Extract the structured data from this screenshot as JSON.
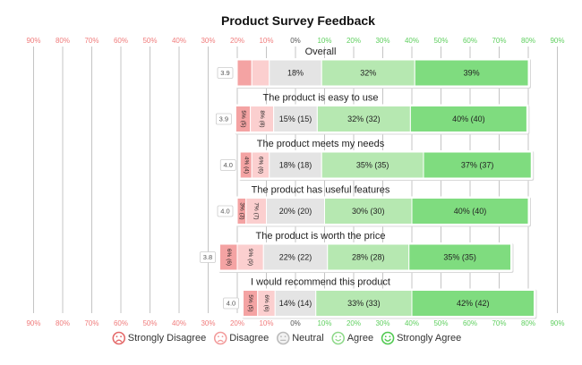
{
  "chart_data": {
    "type": "bar",
    "subtype": "diverging-stacked-horizontal",
    "title": "Product Survey Feedback",
    "axis": {
      "min": -100,
      "max": 100,
      "neutral_centered": true,
      "negative_ticks": [
        "90%",
        "80%",
        "70%",
        "60%",
        "50%",
        "40%",
        "30%",
        "20%",
        "10%"
      ],
      "zero_tick": "0%",
      "positive_ticks": [
        "10%",
        "20%",
        "30%",
        "40%",
        "50%",
        "60%",
        "70%",
        "80%",
        "90%"
      ],
      "negative_color": "#f07c7c",
      "zero_color": "#555555",
      "positive_color": "#5fcf5f"
    },
    "legend_position": "bottom",
    "series": [
      {
        "name": "Strongly Disagree",
        "color": "#f4a3a3",
        "icon": "very-sad-face-icon"
      },
      {
        "name": "Disagree",
        "color": "#fbcfcf",
        "icon": "sad-face-icon"
      },
      {
        "name": "Neutral",
        "color": "#e4e4e4",
        "icon": "neutral-face-icon"
      },
      {
        "name": "Agree",
        "color": "#b6e8b1",
        "icon": "smile-face-icon"
      },
      {
        "name": "Strongly Agree",
        "color": "#7fdc7f",
        "icon": "big-smile-face-icon"
      }
    ],
    "questions": [
      {
        "label": "Overall",
        "average": "3.9",
        "values": [
          5,
          6,
          18,
          32,
          39
        ],
        "labels": [
          "",
          "",
          "18%",
          "32%",
          "39%"
        ]
      },
      {
        "label": "The product is easy to use",
        "average": "3.9",
        "values": [
          5,
          8,
          15,
          32,
          40
        ],
        "labels": [
          "5% (5)",
          "8% (8)",
          "15% (15)",
          "32% (32)",
          "40% (40)"
        ]
      },
      {
        "label": "The product meets my needs",
        "average": "4.0",
        "values": [
          4,
          6,
          18,
          35,
          37
        ],
        "labels": [
          "4% (4)",
          "6% (6)",
          "18% (18)",
          "35% (35)",
          "37% (37)"
        ]
      },
      {
        "label": "The product has useful features",
        "average": "4.0",
        "values": [
          3,
          7,
          20,
          30,
          40
        ],
        "labels": [
          "3% (3)",
          "7% (7)",
          "20% (20)",
          "30% (30)",
          "40% (40)"
        ]
      },
      {
        "label": "The product is worth the price",
        "average": "3.8",
        "values": [
          6,
          9,
          22,
          28,
          35
        ],
        "labels": [
          "6% (6)",
          "9% (9)",
          "22% (22)",
          "28% (28)",
          "35% (35)"
        ]
      },
      {
        "label": "I would recommend this product",
        "average": "4.0",
        "values": [
          5,
          6,
          14,
          33,
          42
        ],
        "labels": [
          "5% (5)",
          "6% (6)",
          "14% (14)",
          "33% (33)",
          "42% (42)"
        ]
      }
    ]
  }
}
